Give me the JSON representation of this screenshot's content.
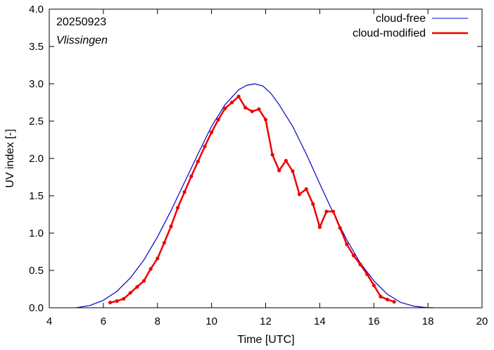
{
  "chart_data": {
    "type": "line",
    "xlabel": "Time  [UTC]",
    "ylabel": "UV index  [-]",
    "xlim": [
      4,
      20
    ],
    "ylim": [
      0,
      4
    ],
    "x_ticks": [
      4,
      6,
      8,
      10,
      12,
      14,
      16,
      18,
      20
    ],
    "y_ticks": [
      0.0,
      0.5,
      1.0,
      1.5,
      2.0,
      2.5,
      3.0,
      3.5,
      4.0
    ],
    "x_tick_labels": [
      "4",
      "6",
      "8",
      "10",
      "12",
      "14",
      "16",
      "18",
      "20"
    ],
    "y_tick_labels": [
      "0.0",
      "0.5",
      "1.0",
      "1.5",
      "2.0",
      "2.5",
      "3.0",
      "3.5",
      "4.0"
    ],
    "annotations": [
      "20250923",
      "Vlissingen"
    ],
    "legend_position": "top-right",
    "series": [
      {
        "name": "cloud-free",
        "color": "#0000cc",
        "style": "line",
        "x": [
          5.0,
          5.5,
          6.0,
          6.5,
          7.0,
          7.5,
          8.0,
          8.5,
          9.0,
          9.5,
          10.0,
          10.5,
          11.0,
          11.3,
          11.6,
          11.9,
          12.2,
          12.5,
          13.0,
          13.5,
          14.0,
          14.5,
          15.0,
          15.5,
          16.0,
          16.5,
          17.0,
          17.5,
          18.0,
          18.2
        ],
        "y": [
          0.0,
          0.03,
          0.1,
          0.22,
          0.4,
          0.64,
          0.95,
          1.3,
          1.68,
          2.06,
          2.43,
          2.72,
          2.92,
          2.98,
          3.0,
          2.97,
          2.87,
          2.72,
          2.43,
          2.06,
          1.66,
          1.27,
          0.91,
          0.6,
          0.36,
          0.18,
          0.07,
          0.02,
          0.0,
          0.0
        ]
      },
      {
        "name": "cloud-modified",
        "color": "#ee0000",
        "style": "line-points",
        "x": [
          6.25,
          6.5,
          6.75,
          7.0,
          7.25,
          7.5,
          7.75,
          8.0,
          8.25,
          8.5,
          8.75,
          9.0,
          9.25,
          9.5,
          9.75,
          10.0,
          10.25,
          10.5,
          10.75,
          11.0,
          11.25,
          11.5,
          11.75,
          12.0,
          12.25,
          12.5,
          12.75,
          13.0,
          13.25,
          13.5,
          13.75,
          14.0,
          14.25,
          14.5,
          14.75,
          15.0,
          15.25,
          15.5,
          15.75,
          16.0,
          16.25,
          16.5,
          16.75
        ],
        "y": [
          0.07,
          0.09,
          0.12,
          0.2,
          0.28,
          0.36,
          0.52,
          0.66,
          0.87,
          1.09,
          1.34,
          1.55,
          1.76,
          1.96,
          2.16,
          2.35,
          2.52,
          2.67,
          2.75,
          2.83,
          2.68,
          2.63,
          2.66,
          2.52,
          2.05,
          1.84,
          1.97,
          1.83,
          1.52,
          1.59,
          1.39,
          1.08,
          1.29,
          1.29,
          1.07,
          0.85,
          0.7,
          0.58,
          0.45,
          0.3,
          0.15,
          0.11,
          0.08
        ]
      }
    ]
  }
}
